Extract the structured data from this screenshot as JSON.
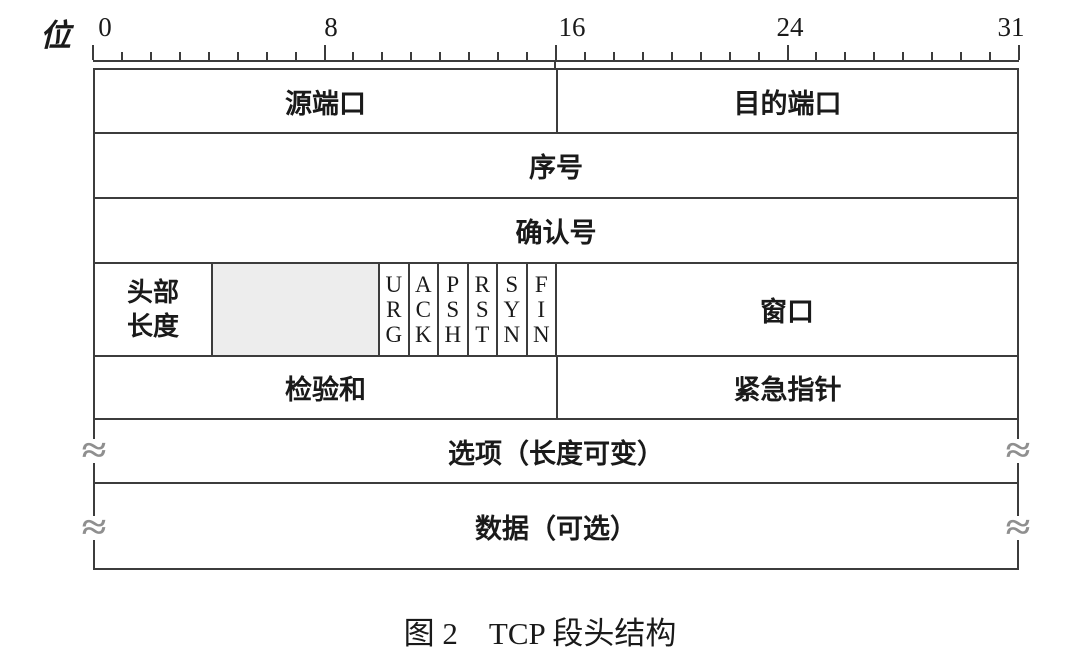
{
  "bit_unit_label": "位",
  "ruler": {
    "bits_total": 32,
    "major_every": 8,
    "labels": [
      "0",
      "8",
      "16",
      "24",
      "31"
    ]
  },
  "fields": {
    "source_port": "源端口",
    "dest_port": "目的端口",
    "sequence_number": "序号",
    "ack_number": "确认号",
    "header_length": "头部\n长度",
    "window": "窗口",
    "checksum": "检验和",
    "urgent_pointer": "紧急指针",
    "options": "选项（长度可变）",
    "data": "数据（可选）"
  },
  "flags": [
    "URG",
    "ACK",
    "PSH",
    "RST",
    "SYN",
    "FIN"
  ],
  "squiggle_mark": "≈",
  "caption": "图 2　TCP 段头结构",
  "colors": {
    "line": "#3c3c3c",
    "reserved_fill": "#ededed",
    "squiggle": "#8f8f8f",
    "text": "#1a1a1a",
    "background": "#ffffff"
  }
}
